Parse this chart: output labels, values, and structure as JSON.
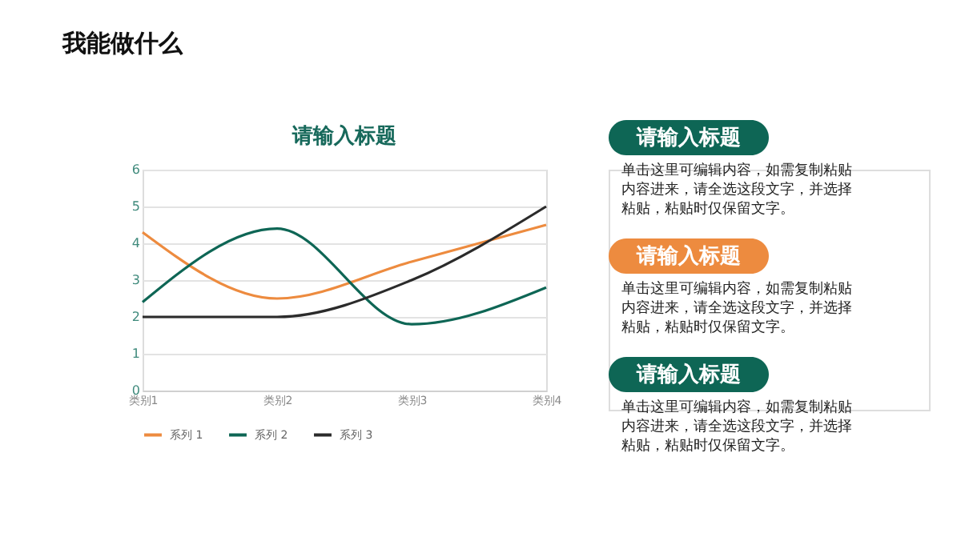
{
  "chart_data": [
    {
      "type": "line",
      "title": "请输入标题",
      "categories": [
        "类别1",
        "类别2",
        "类别3",
        "类别4"
      ],
      "series": [
        {
          "name": "系列 1",
          "color": "#ed8b3f",
          "values": [
            4.3,
            2.5,
            3.5,
            4.5
          ]
        },
        {
          "name": "系列 2",
          "color": "#0e6655",
          "values": [
            2.4,
            4.4,
            1.8,
            2.8
          ]
        },
        {
          "name": "系列 3",
          "color": "#2b2b2b",
          "values": [
            2.0,
            2.0,
            3.0,
            5.0
          ]
        }
      ],
      "ylim": [
        0,
        6
      ],
      "yticks": [
        0,
        1,
        2,
        3,
        4,
        5,
        6
      ],
      "grid": "y",
      "legend": "bottom",
      "annotations": [
        "我能做什么"
      ]
    },
    {
      "type": "other",
      "colors": [
        "#0e6655",
        "#ed8b3f",
        "#0e6655"
      ],
      "annotations": [
        "请输入标题",
        "单击这里可编辑内容，如需复制粘贴内容进来，请全选这段文字，并选择粘贴，粘贴时仅保留文字。",
        "请输入标题",
        "单击这里可编辑内容，如需复制粘贴内容进来，请全选这段文字，并选择粘贴，粘贴时仅保留文字。",
        "请输入标题",
        "单击这里可编辑内容，如需复制粘贴内容进来，请全选这段文字，并选择粘贴，粘贴时仅保留文字。"
      ]
    }
  ]
}
